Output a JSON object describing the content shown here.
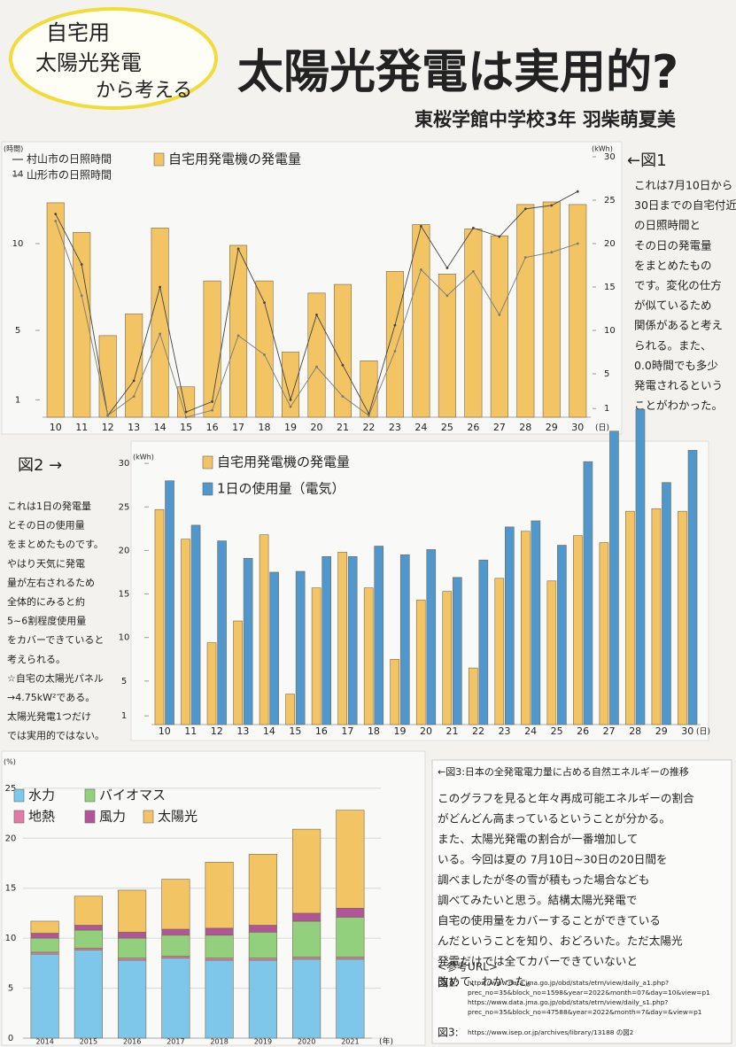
{
  "poster": {
    "badge": [
      "自宅用",
      "太陽光発電",
      "から考える"
    ],
    "title": "太陽光発電は実用的?",
    "author": "東桜学館中学校3年 羽柴萌夏美"
  },
  "notes": [
    {
      "label": "←図1",
      "lines": [
        "これは7月10日から",
        "30日までの自宅付近",
        "の日照時間と",
        "その日の発電量",
        "をまとめたもの",
        "です。変化の仕方",
        "が似ているため",
        "関係があると考え",
        "られる。また、",
        "0.0時間でも多少",
        "発電されるという",
        "ことがわかった。"
      ]
    },
    {
      "label": "図2 →",
      "lines": [
        "これは1日の発電量",
        "とその日の使用量",
        "をまとめたものです。",
        "やはり天気に発電",
        "量が左右されるため",
        "全体的にみると約",
        "5~6割程度使用量",
        "をカバーできていると",
        "考えられる。",
        "☆自宅の太陽光パネル",
        "→4.75kW²である。",
        "太陽光発電1つだけ",
        "では実用的ではない。"
      ]
    },
    {
      "title": "←図3:日本の全発電電力量に占める自然エネルギーの推移",
      "lines": [
        "このグラフを見ると年々再成可能エネルギーの割合",
        "がどんどん高まっているということが分かる。",
        "また、太陽光発電の割合が一番増加して",
        "いる。今回は夏の 7月10日~30日の20日間を",
        "調べましたが冬の雪が積もった場合なども",
        "調べてみたいと思う。結構太陽光発電で",
        "自宅の使用量をカバーすることができている",
        "んだということを知り、おどろいた。ただ太陽光",
        "発電だけでは全てカバーできていないと",
        "改めて、わかった。"
      ],
      "ref_heading": "<参考URL>",
      "refs": [
        {
          "label": "図1:",
          "urls": [
            "https://www.data.jma.go.jp/obd/stats/etrn/view/daily_a1.php?",
            "prec_no=35&block_no=1598&year=2022&month=07&day=10&view=p1",
            "https://www.data.jma.go.jp/obd/stats/etrn/view/daily_s1.php?",
            "prec_no=35&block_no=47588&year=2022&month=7&day=&view=p1"
          ]
        },
        {
          "label": "図3:",
          "urls": [
            "https://www.isep.or.jp/archives/library/13188 の図2"
          ]
        }
      ]
    }
  ],
  "chart_data": [
    {
      "type": "combo",
      "categories": [
        10,
        11,
        12,
        13,
        14,
        15,
        16,
        17,
        18,
        19,
        20,
        21,
        22,
        23,
        24,
        25,
        26,
        27,
        28,
        29,
        30
      ],
      "x_unit": "(日)",
      "y_unit": "(時間)",
      "y2_unit": "(kWh)",
      "ylim": [
        0,
        15
      ],
      "yticks": [
        1,
        5,
        10,
        14
      ],
      "y2lim": [
        0,
        30
      ],
      "y2ticks": [
        1,
        5,
        10,
        15,
        20,
        25,
        30
      ],
      "series": [
        {
          "name": "村山市の日照時間",
          "type": "line",
          "color": "#444444",
          "values": [
            11.7,
            8.8,
            0.1,
            2.1,
            7.5,
            0.3,
            0.9,
            9.7,
            6.6,
            1.0,
            5.9,
            3.0,
            0.2,
            5.3,
            11.0,
            8.6,
            10.9,
            10.4,
            12.0,
            12.2,
            13.0
          ]
        },
        {
          "name": "山形市の日照時間",
          "type": "line",
          "color": "#7a7a7a",
          "values": [
            11.3,
            7.0,
            0.1,
            1.2,
            4.8,
            0.0,
            0.4,
            4.7,
            3.6,
            0.6,
            2.9,
            1.2,
            0.1,
            3.8,
            8.5,
            7.0,
            8.4,
            5.9,
            9.2,
            9.5,
            10.0
          ]
        },
        {
          "name": "自宅用発電機の発電量",
          "type": "bar",
          "axis": "y2",
          "color": "#f2c464",
          "values": [
            24.7,
            21.3,
            9.4,
            11.9,
            21.8,
            3.5,
            15.7,
            19.8,
            15.7,
            7.5,
            14.3,
            15.3,
            6.5,
            16.8,
            22.2,
            16.5,
            21.7,
            20.9,
            24.5,
            24.8,
            24.5
          ]
        }
      ]
    },
    {
      "type": "bar",
      "categories": [
        10,
        11,
        12,
        13,
        14,
        15,
        16,
        17,
        18,
        19,
        20,
        21,
        22,
        23,
        24,
        25,
        26,
        27,
        28,
        29,
        30
      ],
      "x_unit": "(日)",
      "y_unit": "(kWh)",
      "ylim": [
        0,
        37
      ],
      "yticks": [
        1,
        5,
        10,
        15,
        20,
        25,
        30
      ],
      "series": [
        {
          "name": "自宅用発電機の発電量",
          "color": "#f2c464",
          "values": [
            24.7,
            21.3,
            9.4,
            11.9,
            21.8,
            3.5,
            15.7,
            19.8,
            15.7,
            7.5,
            14.3,
            15.3,
            6.5,
            16.8,
            22.2,
            16.5,
            21.7,
            20.9,
            24.5,
            24.8,
            24.5
          ]
        },
        {
          "name": "1日の使用量（電気）",
          "color": "#4f97cc",
          "values": [
            28.0,
            22.9,
            21.1,
            19.1,
            17.5,
            17.6,
            19.3,
            19.3,
            20.5,
            19.5,
            20.1,
            16.9,
            18.9,
            22.7,
            23.4,
            20.6,
            30.2,
            33.7,
            36.2,
            27.8,
            31.5
          ]
        }
      ]
    },
    {
      "type": "stacked_bar",
      "categories": [
        2014,
        2015,
        2016,
        2017,
        2018,
        2019,
        2020,
        2021
      ],
      "x_unit": "(年)",
      "y_unit": "(%)",
      "ylim": [
        0,
        28
      ],
      "yticks": [
        0,
        5,
        10,
        15,
        20,
        25
      ],
      "grid": true,
      "series": [
        {
          "name": "水力",
          "color": "#7ec6ea",
          "values": [
            8.4,
            8.8,
            7.8,
            8.0,
            7.8,
            7.8,
            7.9,
            7.9
          ]
        },
        {
          "name": "地熱",
          "color": "#e27aa6",
          "values": [
            0.2,
            0.2,
            0.2,
            0.2,
            0.2,
            0.2,
            0.2,
            0.2
          ]
        },
        {
          "name": "バイオマス",
          "color": "#93d07e",
          "values": [
            1.4,
            1.8,
            2.0,
            2.1,
            2.3,
            2.6,
            3.6,
            4.0
          ]
        },
        {
          "name": "風力",
          "color": "#b0559a",
          "values": [
            0.5,
            0.5,
            0.6,
            0.6,
            0.7,
            0.7,
            0.8,
            0.9
          ]
        },
        {
          "name": "太陽光",
          "color": "#f2c464",
          "values": [
            1.2,
            2.9,
            4.2,
            5.0,
            6.6,
            7.1,
            8.4,
            9.8
          ]
        }
      ]
    }
  ]
}
